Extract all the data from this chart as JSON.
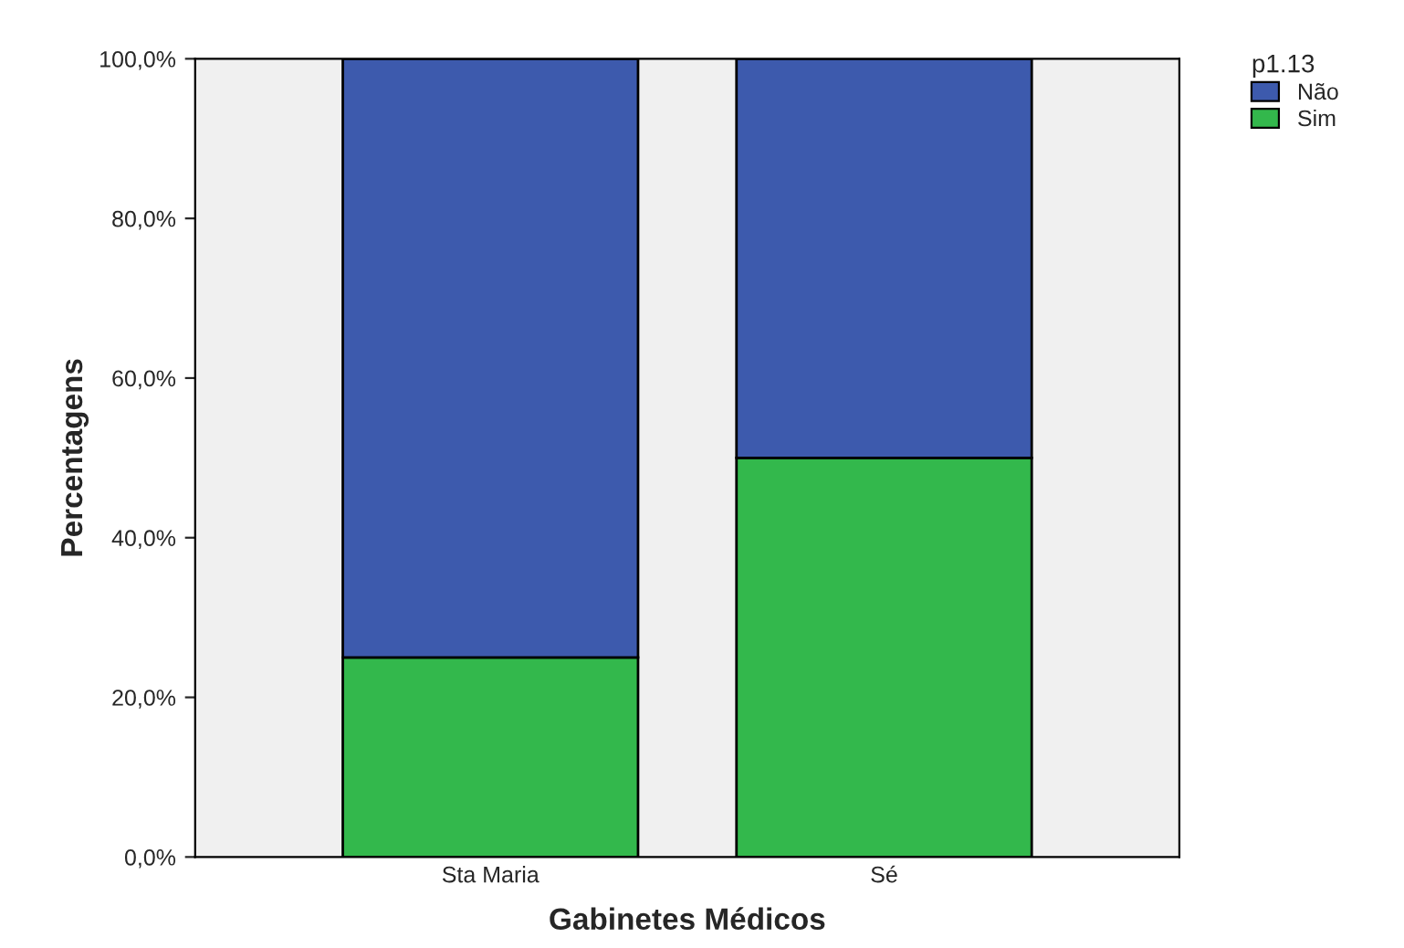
{
  "chart_data": {
    "type": "bar",
    "stacked": true,
    "xlabel": "Gabinetes Médicos",
    "ylabel": "Percentagens",
    "legend_title": "p1.13",
    "legend": "top right",
    "categories": [
      "Sta Maria",
      "Sé"
    ],
    "series": [
      {
        "name": "Sim",
        "color": "#33b84c",
        "values": [
          25,
          50
        ]
      },
      {
        "name": "Não",
        "color": "#3d5aad",
        "values": [
          75,
          50
        ]
      }
    ],
    "ylim": [
      0,
      100
    ],
    "yticks": [
      {
        "value": 0,
        "label": "0,0%"
      },
      {
        "value": 20,
        "label": "20,0%"
      },
      {
        "value": 40,
        "label": "40,0%"
      },
      {
        "value": 60,
        "label": "60,0%"
      },
      {
        "value": 80,
        "label": "80,0%"
      },
      {
        "value": 100,
        "label": "100,0%"
      }
    ],
    "grid": false
  }
}
